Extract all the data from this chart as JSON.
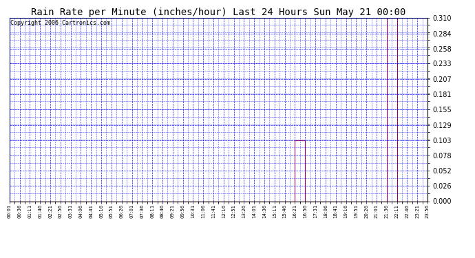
{
  "title": "Rain Rate per Minute (inches/hour) Last 24 Hours Sun May 21 00:00",
  "copyright": "Copyright 2006 Cartronics.com",
  "ylim": [
    0.0,
    0.31
  ],
  "yticks": [
    0.0,
    0.026,
    0.052,
    0.078,
    0.103,
    0.129,
    0.155,
    0.181,
    0.207,
    0.233,
    0.258,
    0.284,
    0.31
  ],
  "x_labels": [
    "00:01",
    "00:36",
    "01:11",
    "01:46",
    "02:21",
    "02:56",
    "03:31",
    "04:06",
    "04:41",
    "05:16",
    "05:51",
    "06:26",
    "07:01",
    "07:36",
    "08:11",
    "08:46",
    "09:21",
    "09:56",
    "10:31",
    "11:06",
    "11:41",
    "12:16",
    "12:51",
    "13:26",
    "14:01",
    "14:36",
    "15:11",
    "15:46",
    "16:21",
    "16:56",
    "17:31",
    "18:06",
    "18:41",
    "19:16",
    "19:51",
    "20:26",
    "21:01",
    "21:36",
    "22:11",
    "22:46",
    "23:21",
    "23:56"
  ],
  "rain_data": [
    0,
    0,
    0,
    0,
    0,
    0,
    0,
    0,
    0,
    0,
    0,
    0,
    0,
    0,
    0,
    0,
    0,
    0,
    0,
    0,
    0,
    0,
    0,
    0,
    0,
    0,
    0,
    0,
    0,
    0.103,
    0,
    0,
    0,
    0,
    0,
    0,
    0,
    0,
    0.31,
    0,
    0,
    0
  ],
  "background_color": "#ffffff",
  "line_color": "#ff0000",
  "grid_color": "#0000ff",
  "title_color": "#000000",
  "title_fontsize": 10,
  "copyright_fontsize": 6,
  "fig_width": 6.9,
  "fig_height": 3.75,
  "dpi": 100
}
